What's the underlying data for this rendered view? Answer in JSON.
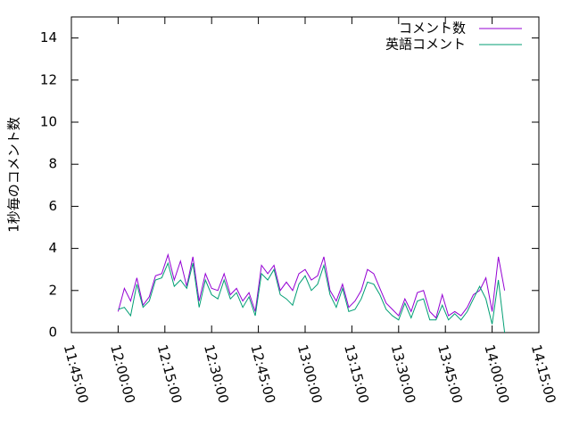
{
  "chart_data": {
    "type": "line",
    "y_label": "1秒毎のコメント数",
    "x": [
      "12:00:00",
      "12:02:00",
      "12:04:00",
      "12:06:00",
      "12:08:00",
      "12:10:00",
      "12:12:00",
      "12:14:00",
      "12:16:00",
      "12:18:00",
      "12:20:00",
      "12:22:00",
      "12:24:00",
      "12:26:00",
      "12:28:00",
      "12:30:00",
      "12:32:00",
      "12:34:00",
      "12:36:00",
      "12:38:00",
      "12:40:00",
      "12:42:00",
      "12:44:00",
      "12:46:00",
      "12:48:00",
      "12:50:00",
      "12:52:00",
      "12:54:00",
      "12:56:00",
      "12:58:00",
      "13:00:00",
      "13:02:00",
      "13:04:00",
      "13:06:00",
      "13:08:00",
      "13:10:00",
      "13:12:00",
      "13:14:00",
      "13:16:00",
      "13:18:00",
      "13:20:00",
      "13:22:00",
      "13:24:00",
      "13:26:00",
      "13:28:00",
      "13:30:00",
      "13:32:00",
      "13:34:00",
      "13:36:00",
      "13:38:00",
      "13:40:00",
      "13:42:00",
      "13:44:00",
      "13:46:00",
      "13:48:00",
      "13:50:00",
      "13:52:00",
      "13:54:00",
      "13:56:00",
      "13:58:00",
      "14:00:00",
      "14:02:00",
      "14:04:00"
    ],
    "series": [
      {
        "name": "コメント数",
        "color": "#9400d3",
        "values": [
          1.0,
          2.1,
          1.5,
          2.6,
          1.3,
          1.7,
          2.7,
          2.8,
          3.7,
          2.5,
          3.4,
          2.2,
          3.6,
          1.5,
          2.8,
          2.1,
          2.0,
          2.8,
          1.8,
          2.1,
          1.5,
          1.9,
          1.0,
          3.2,
          2.8,
          3.2,
          2.0,
          2.4,
          2.0,
          2.8,
          3.0,
          2.5,
          2.7,
          3.6,
          2.0,
          1.5,
          2.3,
          1.2,
          1.5,
          2.0,
          3.0,
          2.8,
          2.1,
          1.4,
          1.1,
          0.8,
          1.6,
          1.0,
          1.9,
          2.0,
          1.0,
          0.7,
          1.8,
          0.8,
          1.0,
          0.8,
          1.2,
          1.8,
          2.0,
          2.6,
          1.0,
          3.6,
          2.0
        ]
      },
      {
        "name": "英語コメント",
        "color": "#009e73",
        "values": [
          1.1,
          1.2,
          0.8,
          2.3,
          1.2,
          1.5,
          2.5,
          2.6,
          3.3,
          2.2,
          2.5,
          2.1,
          3.3,
          1.2,
          2.5,
          1.8,
          1.6,
          2.5,
          1.6,
          1.9,
          1.2,
          1.7,
          0.8,
          2.8,
          2.5,
          3.0,
          1.8,
          1.6,
          1.3,
          2.3,
          2.7,
          2.0,
          2.3,
          3.2,
          1.8,
          1.2,
          2.1,
          1.0,
          1.1,
          1.6,
          2.4,
          2.3,
          1.8,
          1.1,
          0.8,
          0.6,
          1.4,
          0.7,
          1.5,
          1.6,
          0.6,
          0.6,
          1.3,
          0.6,
          0.9,
          0.6,
          1.0,
          1.6,
          2.2,
          1.6,
          0.4,
          2.5,
          0.0
        ]
      }
    ],
    "xlim": [
      "11:45:00",
      "14:15:00"
    ],
    "xticks": [
      "11:45:00",
      "12:00:00",
      "12:15:00",
      "12:30:00",
      "12:45:00",
      "13:00:00",
      "13:15:00",
      "13:30:00",
      "13:45:00",
      "14:00:00",
      "14:15:00"
    ],
    "ylim": [
      0,
      15
    ],
    "yticks": [
      0,
      2,
      4,
      6,
      8,
      10,
      12,
      14
    ],
    "legend": "top-right"
  }
}
